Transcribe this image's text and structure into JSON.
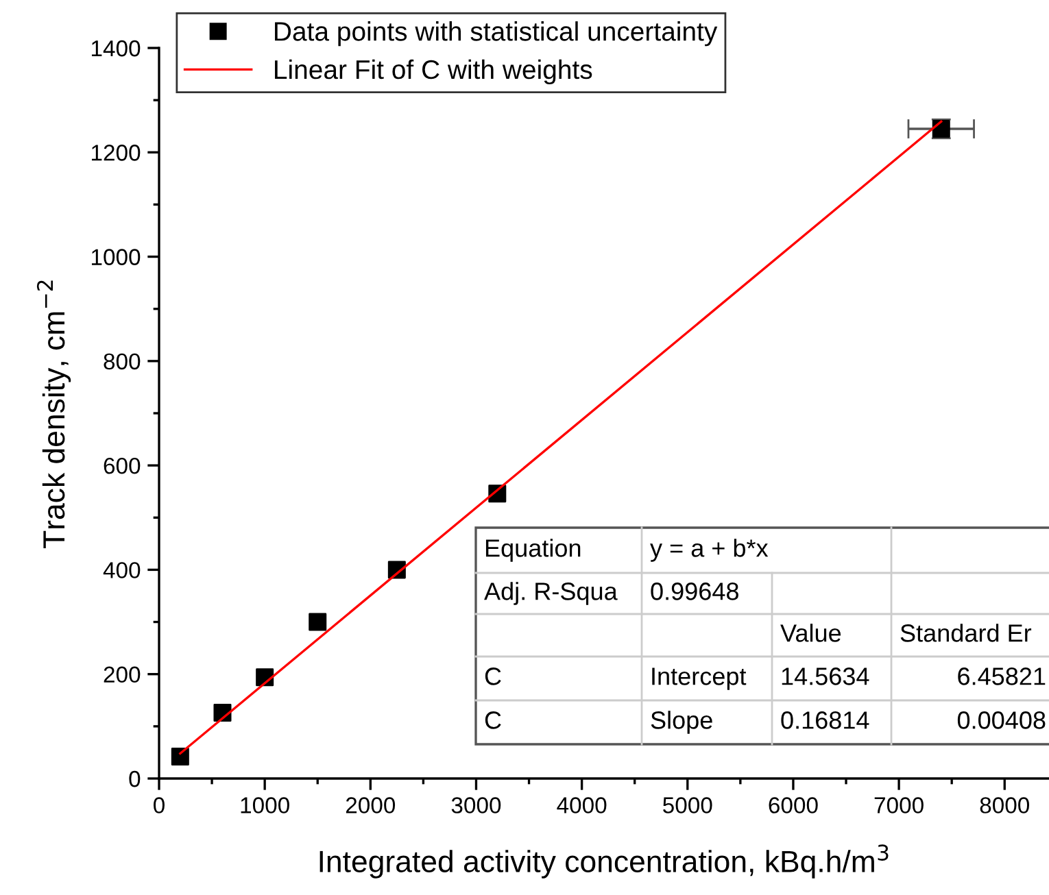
{
  "chart_data": {
    "type": "scatter",
    "xlabel": "Integrated activity concentration, kBq.h/m$^{3}$",
    "ylabel": "Track density, cm$^{−2}$",
    "series": [
      {
        "name": "Data points with statistical uncertainty",
        "color": "#000000",
        "marker": "square",
        "x": [
          200,
          600,
          1000,
          1500,
          2250,
          3200,
          7400
        ],
        "values": [
          42,
          126,
          194,
          300,
          400,
          546,
          1245
        ],
        "errors": [
          null,
          null,
          null,
          null,
          null,
          null,
          18
        ],
        "xerrors": [
          null,
          null,
          null,
          null,
          null,
          null,
          310
        ]
      },
      {
        "name": "Linear Fit of C with weights",
        "type": "line",
        "color": "#ff0000",
        "marker": "none",
        "line_style": "solid",
        "x": [
          200,
          7400
        ],
        "values": [
          48,
          1259
        ]
      }
    ],
    "xlim": [
      0,
      8420
    ],
    "ylim": [
      0,
      1400
    ],
    "xticks": [
      0,
      1000,
      2000,
      3000,
      4000,
      5000,
      6000,
      7000,
      8000
    ],
    "yticks": [
      0,
      200,
      400,
      600,
      800,
      1000,
      1200,
      1400
    ],
    "grid": false,
    "legend": "top",
    "annotations": [
      "Equation",
      "y = a + b*x",
      "Adj. R-Squa",
      "0.99648",
      "Value",
      "Standard Er",
      "C",
      "Intercept",
      "14.5634",
      "6.45821",
      "C",
      "Slope",
      "0.16814",
      "0.00408"
    ]
  }
}
